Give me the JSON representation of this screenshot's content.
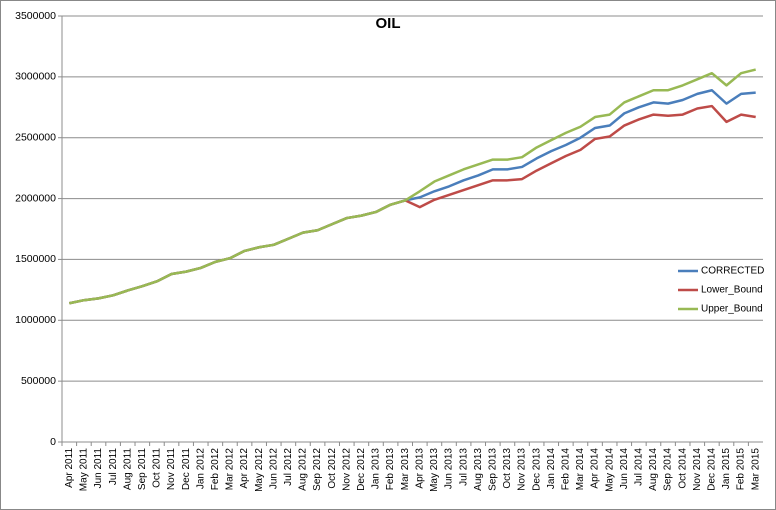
{
  "chart_data": {
    "type": "line",
    "title": "OIL",
    "categories": [
      "Apr 2011",
      "May 2011",
      "Jun 2011",
      "Jul 2011",
      "Aug 2011",
      "Sep 2011",
      "Oct 2011",
      "Nov 2011",
      "Dec 2011",
      "Jan 2012",
      "Feb 2012",
      "Mar 2012",
      "Apr 2012",
      "May 2012",
      "Jun 2012",
      "Jul 2012",
      "Aug 2012",
      "Sep 2012",
      "Oct 2012",
      "Nov 2012",
      "Dec 2012",
      "Jan 2013",
      "Feb 2013",
      "Mar 2013",
      "Apr 2013",
      "May 2013",
      "Jun 2013",
      "Jul 2013",
      "Aug 2013",
      "Sep 2013",
      "Oct 2013",
      "Nov 2013",
      "Dec 2013",
      "Jan 2014",
      "Feb 2014",
      "Mar 2014",
      "Apr 2014",
      "May 2014",
      "Jun 2014",
      "Jul 2014",
      "Aug 2014",
      "Sep 2014",
      "Oct 2014",
      "Nov 2014",
      "Dec 2014",
      "Jan 2015",
      "Feb 2015",
      "Mar 2015"
    ],
    "series": [
      {
        "name": "CORRECTED",
        "color": "#4a7ebb",
        "values": [
          1140000,
          1165000,
          1180000,
          1205000,
          1245000,
          1280000,
          1320000,
          1380000,
          1400000,
          1430000,
          1480000,
          1510000,
          1570000,
          1600000,
          1620000,
          1670000,
          1720000,
          1740000,
          1790000,
          1840000,
          1860000,
          1890000,
          1950000,
          1985000,
          2010000,
          2060000,
          2100000,
          2150000,
          2190000,
          2240000,
          2240000,
          2260000,
          2330000,
          2390000,
          2440000,
          2500000,
          2580000,
          2600000,
          2700000,
          2750000,
          2790000,
          2780000,
          2810000,
          2860000,
          2890000,
          2780000,
          2860000,
          2870000
        ]
      },
      {
        "name": "Lower_Bound",
        "color": "#be4b48",
        "values": [
          1140000,
          1165000,
          1180000,
          1205000,
          1245000,
          1280000,
          1320000,
          1380000,
          1400000,
          1430000,
          1480000,
          1510000,
          1570000,
          1600000,
          1620000,
          1670000,
          1720000,
          1740000,
          1790000,
          1840000,
          1860000,
          1890000,
          1950000,
          1985000,
          1930000,
          1990000,
          2030000,
          2070000,
          2110000,
          2150000,
          2150000,
          2160000,
          2230000,
          2290000,
          2350000,
          2400000,
          2490000,
          2510000,
          2600000,
          2650000,
          2690000,
          2680000,
          2690000,
          2740000,
          2760000,
          2630000,
          2690000,
          2670000
        ]
      },
      {
        "name": "Upper_Bound",
        "color": "#98b954",
        "values": [
          1140000,
          1165000,
          1180000,
          1205000,
          1245000,
          1280000,
          1320000,
          1380000,
          1400000,
          1430000,
          1480000,
          1510000,
          1570000,
          1600000,
          1620000,
          1670000,
          1720000,
          1740000,
          1790000,
          1840000,
          1860000,
          1890000,
          1950000,
          1985000,
          2060000,
          2140000,
          2190000,
          2240000,
          2280000,
          2320000,
          2320000,
          2340000,
          2420000,
          2480000,
          2540000,
          2590000,
          2670000,
          2690000,
          2790000,
          2840000,
          2890000,
          2890000,
          2930000,
          2980000,
          3030000,
          2930000,
          3030000,
          3060000
        ]
      }
    ],
    "ylim": [
      0,
      3500000
    ],
    "yticks": [
      0,
      500000,
      1000000,
      1500000,
      2000000,
      2500000,
      3000000,
      3500000
    ],
    "grid": true,
    "legend": "right"
  }
}
